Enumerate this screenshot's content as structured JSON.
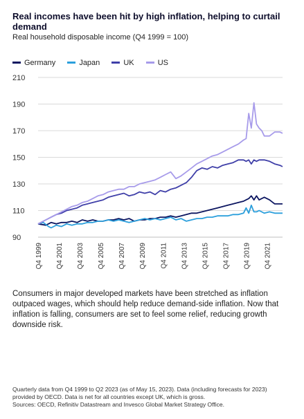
{
  "chart_data": {
    "type": "line",
    "title": "Real incomes have been hit by high inflation, helping to curtail demand",
    "subtitle": "Real household disposable income (Q4 1999 = 100)",
    "xlabel": "",
    "ylabel": "",
    "ylim": [
      90,
      210
    ],
    "yticks": [
      90,
      110,
      130,
      150,
      170,
      190,
      210
    ],
    "xlim": [
      1999.75,
      2023.25
    ],
    "xticks": [
      "Q4 1999",
      "Q4 2001",
      "Q4 2003",
      "Q4 2005",
      "Q4 2007",
      "Q4 2009",
      "Q4 2011",
      "Q4 2013",
      "Q4 2015",
      "Q4 2017",
      "Q4 2019",
      "Q4 2021"
    ],
    "xtick_positions": [
      1999.75,
      2001.75,
      2003.75,
      2005.75,
      2007.75,
      2009.75,
      2011.75,
      2013.75,
      2015.75,
      2017.75,
      2019.75,
      2021.75
    ],
    "grid": "horizontal",
    "legend_position": "top-left",
    "series": [
      {
        "name": "Germany",
        "color": "#0b1560",
        "x": [
          1999.75,
          2000.5,
          2001.0,
          2001.5,
          2002.0,
          2002.5,
          2003.0,
          2003.5,
          2004.0,
          2004.5,
          2005.0,
          2005.5,
          2006.0,
          2006.5,
          2007.0,
          2007.5,
          2008.0,
          2008.5,
          2009.0,
          2009.5,
          2010.0,
          2010.5,
          2011.0,
          2011.5,
          2012.0,
          2012.5,
          2013.0,
          2013.5,
          2014.0,
          2014.5,
          2015.0,
          2015.5,
          2016.0,
          2016.5,
          2017.0,
          2017.5,
          2018.0,
          2018.5,
          2019.0,
          2019.5,
          2019.75,
          2020.0,
          2020.25,
          2020.5,
          2020.75,
          2021.0,
          2021.5,
          2022.0,
          2022.5,
          2023.0,
          2023.25
        ],
        "values": [
          100,
          99,
          101,
          100,
          101,
          101,
          102,
          101,
          103,
          102,
          103,
          102,
          102,
          103,
          103,
          104,
          103,
          104,
          102,
          103,
          103,
          104,
          104,
          105,
          105,
          106,
          105,
          106,
          107,
          108,
          108,
          109,
          110,
          111,
          112,
          113,
          114,
          115,
          116,
          117,
          118,
          119,
          121,
          118,
          121,
          118,
          120,
          118,
          115,
          115,
          115
        ]
      },
      {
        "name": "Japan",
        "color": "#2b9fdc",
        "x": [
          1999.75,
          2000.25,
          2000.75,
          2001.0,
          2001.5,
          2002.0,
          2002.5,
          2003.0,
          2003.5,
          2004.0,
          2004.5,
          2005.0,
          2005.5,
          2006.0,
          2006.5,
          2007.0,
          2007.5,
          2008.0,
          2008.5,
          2009.0,
          2009.5,
          2010.0,
          2010.5,
          2011.0,
          2011.5,
          2012.0,
          2012.5,
          2013.0,
          2013.5,
          2014.0,
          2014.5,
          2015.0,
          2015.5,
          2016.0,
          2016.5,
          2017.0,
          2017.5,
          2018.0,
          2018.5,
          2019.0,
          2019.5,
          2019.75,
          2020.0,
          2020.25,
          2020.5,
          2020.75,
          2021.0,
          2021.5,
          2022.0,
          2022.5,
          2023.0,
          2023.25
        ],
        "values": [
          100,
          101,
          98,
          97,
          99,
          98,
          100,
          99,
          100,
          100,
          101,
          101,
          102,
          102,
          103,
          102,
          103,
          102,
          101,
          102,
          103,
          104,
          103,
          104,
          103,
          104,
          105,
          103,
          104,
          102,
          103,
          104,
          104,
          105,
          105,
          106,
          106,
          106,
          107,
          107,
          108,
          112,
          108,
          114,
          109,
          109,
          110,
          108,
          109,
          108,
          108,
          108
        ]
      },
      {
        "name": "UK",
        "color": "#3f3fa8",
        "x": [
          1999.75,
          2000.5,
          2001.0,
          2001.5,
          2002.0,
          2002.5,
          2003.0,
          2003.5,
          2004.0,
          2004.5,
          2005.0,
          2005.5,
          2006.0,
          2006.5,
          2007.0,
          2007.5,
          2008.0,
          2008.5,
          2009.0,
          2009.5,
          2010.0,
          2010.5,
          2011.0,
          2011.5,
          2012.0,
          2012.5,
          2013.0,
          2013.5,
          2014.0,
          2014.5,
          2015.0,
          2015.5,
          2016.0,
          2016.5,
          2017.0,
          2017.5,
          2018.0,
          2018.5,
          2019.0,
          2019.5,
          2019.75,
          2020.0,
          2020.25,
          2020.5,
          2020.75,
          2021.0,
          2021.5,
          2022.0,
          2022.5,
          2023.0,
          2023.25
        ],
        "values": [
          100,
          103,
          105,
          107,
          108,
          110,
          111,
          112,
          114,
          115,
          116,
          117,
          118,
          120,
          121,
          122,
          123,
          121,
          122,
          124,
          123,
          124,
          122,
          125,
          124,
          126,
          127,
          129,
          131,
          135,
          140,
          142,
          141,
          143,
          142,
          144,
          145,
          146,
          148,
          148,
          147,
          148,
          145,
          148,
          147,
          148,
          148,
          147,
          145,
          144,
          143
        ]
      },
      {
        "name": "US",
        "color": "#a79bea",
        "x": [
          1999.75,
          2000.5,
          2001.0,
          2001.5,
          2002.0,
          2002.5,
          2003.0,
          2003.5,
          2004.0,
          2004.5,
          2005.0,
          2005.5,
          2006.0,
          2006.5,
          2007.0,
          2007.5,
          2008.0,
          2008.5,
          2009.0,
          2009.5,
          2010.0,
          2010.5,
          2011.0,
          2011.5,
          2012.0,
          2012.5,
          2013.0,
          2013.5,
          2014.0,
          2014.5,
          2015.0,
          2015.5,
          2016.0,
          2016.5,
          2017.0,
          2017.5,
          2018.0,
          2018.5,
          2019.0,
          2019.5,
          2019.75,
          2020.0,
          2020.25,
          2020.5,
          2020.75,
          2021.0,
          2021.25,
          2021.5,
          2022.0,
          2022.5,
          2023.0,
          2023.25
        ],
        "values": [
          100,
          103,
          105,
          107,
          109,
          111,
          113,
          114,
          116,
          117,
          119,
          121,
          122,
          124,
          125,
          126,
          126,
          128,
          128,
          130,
          131,
          132,
          133,
          135,
          137,
          139,
          134,
          136,
          139,
          142,
          145,
          147,
          149,
          151,
          152,
          154,
          156,
          158,
          160,
          163,
          164,
          183,
          172,
          191,
          175,
          172,
          170,
          166,
          166,
          169,
          169,
          168
        ]
      }
    ]
  },
  "description": "Consumers in major developed markets have been stretched as inflation outpaced wages, which should help reduce demand-side inflation. Now that inflation is falling, consumers are set to feel some relief, reducing growth downside risk.",
  "notes": [
    "Quarterly data from Q4 1999 to Q2 2023 (as of May 15, 2023). Data (including forecasts for 2023)",
    "provided by OECD. Data is net for all countries except UK, which is gross.",
    "Sources: OECD, Refinitiv Datastream and Invesco Global Market Strategy Office."
  ]
}
